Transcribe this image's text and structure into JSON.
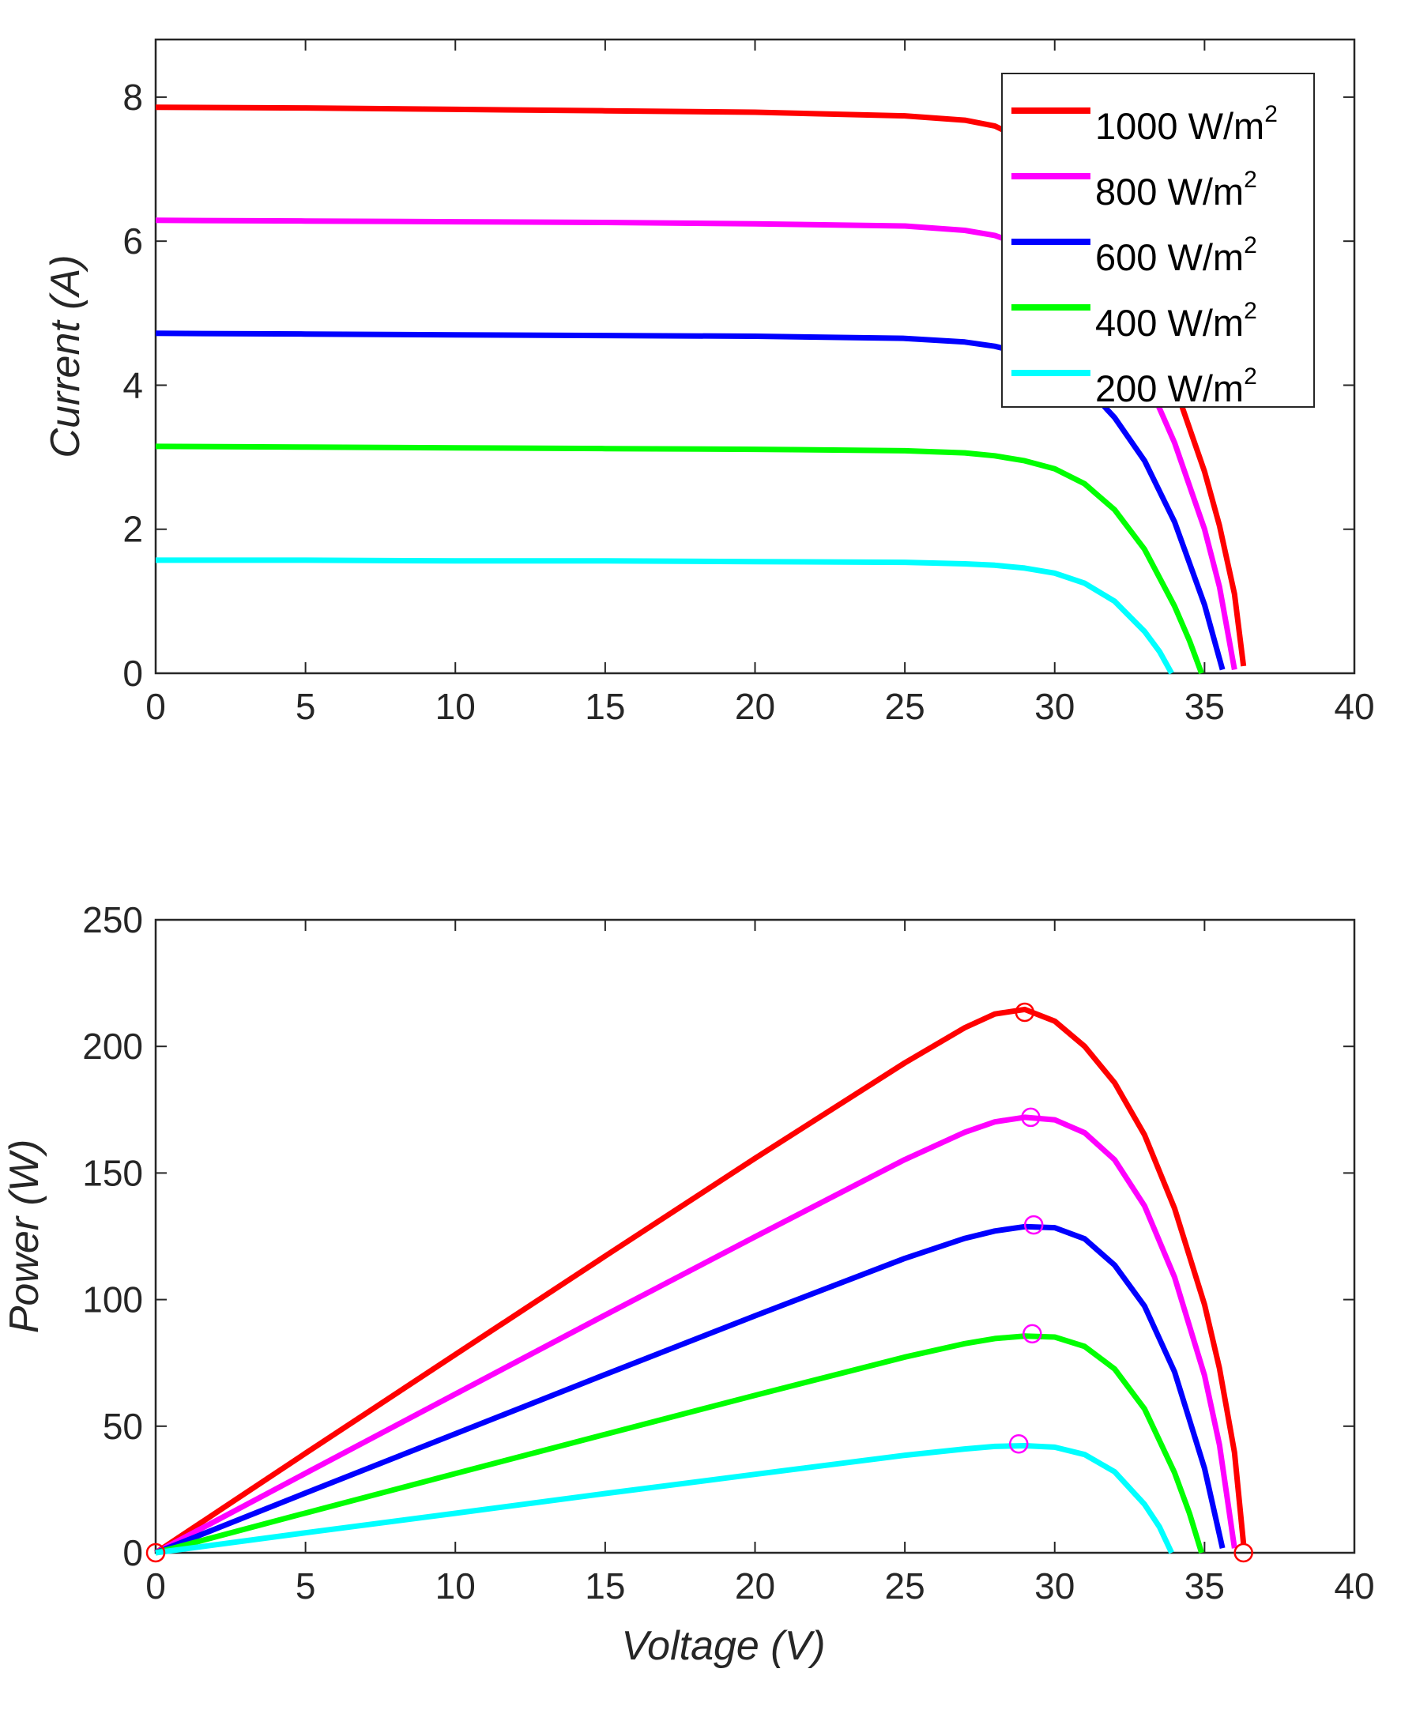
{
  "chart_data": [
    {
      "type": "line",
      "xlabel": "",
      "ylabel": "Current (A)",
      "xlim": [
        0,
        40
      ],
      "ylim": [
        0,
        8.8
      ],
      "xticks": [
        0,
        5,
        10,
        15,
        20,
        25,
        30,
        35,
        40
      ],
      "yticks": [
        0,
        2,
        4,
        6,
        8
      ],
      "grid": false,
      "legend": {
        "position": "top-right",
        "unit": "W/m",
        "superscript": "2"
      },
      "series": [
        {
          "name": "1000",
          "color": "#ff0000",
          "x": [
            0,
            5,
            10,
            15,
            20,
            25,
            27,
            28,
            29,
            30,
            31,
            32,
            33,
            34,
            35,
            35.5,
            36,
            36.3
          ],
          "y": [
            7.86,
            7.85,
            7.83,
            7.81,
            7.79,
            7.74,
            7.68,
            7.6,
            7.4,
            7.0,
            6.45,
            5.8,
            5.0,
            4.0,
            2.8,
            2.05,
            1.1,
            0.1
          ]
        },
        {
          "name": "800",
          "color": "#ff00ff",
          "x": [
            0,
            5,
            10,
            15,
            20,
            25,
            27,
            28,
            29,
            30,
            31,
            32,
            33,
            34,
            35,
            35.5,
            36
          ],
          "y": [
            6.29,
            6.28,
            6.27,
            6.26,
            6.24,
            6.21,
            6.15,
            6.08,
            5.93,
            5.7,
            5.35,
            4.85,
            4.15,
            3.2,
            2.0,
            1.2,
            0.05
          ]
        },
        {
          "name": "600",
          "color": "#0000ff",
          "x": [
            0,
            5,
            10,
            15,
            20,
            25,
            27,
            28,
            29,
            30,
            31,
            32,
            33,
            34,
            35,
            35.6
          ],
          "y": [
            4.72,
            4.71,
            4.7,
            4.69,
            4.68,
            4.65,
            4.6,
            4.54,
            4.44,
            4.28,
            4.0,
            3.55,
            2.95,
            2.1,
            0.95,
            0.05
          ]
        },
        {
          "name": "400",
          "color": "#00ff00",
          "x": [
            0,
            5,
            10,
            15,
            20,
            25,
            27,
            28,
            29,
            30,
            31,
            32,
            33,
            34,
            34.5,
            34.9
          ],
          "y": [
            3.15,
            3.14,
            3.13,
            3.12,
            3.11,
            3.09,
            3.06,
            3.02,
            2.95,
            2.84,
            2.63,
            2.27,
            1.72,
            0.93,
            0.45,
            0.0
          ]
        },
        {
          "name": "200",
          "color": "#00ffff",
          "x": [
            0,
            5,
            10,
            15,
            20,
            25,
            27,
            28,
            29,
            30,
            31,
            32,
            33,
            33.5,
            33.9
          ],
          "y": [
            1.57,
            1.57,
            1.56,
            1.56,
            1.55,
            1.54,
            1.52,
            1.5,
            1.46,
            1.39,
            1.25,
            1.0,
            0.58,
            0.3,
            0.0
          ]
        }
      ]
    },
    {
      "type": "line",
      "xlabel": "Voltage (V)",
      "ylabel": "Power (W)",
      "xlim": [
        0,
        40
      ],
      "ylim": [
        0,
        250
      ],
      "xticks": [
        0,
        5,
        10,
        15,
        20,
        25,
        30,
        35,
        40
      ],
      "yticks": [
        0,
        50,
        100,
        150,
        200,
        250
      ],
      "grid": false,
      "series": [
        {
          "name": "1000",
          "color": "#ff0000",
          "x": [
            0,
            5,
            10,
            15,
            20,
            25,
            27,
            28,
            29,
            30,
            31,
            32,
            33,
            34,
            35,
            35.5,
            36,
            36.3
          ],
          "y": [
            0,
            39.3,
            78.3,
            117.2,
            155.8,
            193.5,
            207.4,
            212.8,
            214.6,
            210.0,
            200.0,
            185.6,
            165.0,
            136.0,
            98.0,
            72.8,
            39.6,
            3.6
          ]
        },
        {
          "name": "800",
          "color": "#ff00ff",
          "x": [
            0,
            5,
            10,
            15,
            20,
            25,
            27,
            28,
            29,
            30,
            31,
            32,
            33,
            34,
            35,
            35.5,
            36
          ],
          "y": [
            0,
            31.4,
            62.7,
            93.9,
            124.8,
            155.3,
            166.1,
            170.2,
            172.0,
            171.0,
            165.9,
            155.2,
            137.0,
            108.8,
            70.0,
            42.6,
            1.8
          ]
        },
        {
          "name": "600",
          "color": "#0000ff",
          "x": [
            0,
            5,
            10,
            15,
            20,
            25,
            27,
            28,
            29,
            30,
            31,
            32,
            33,
            34,
            35,
            35.6
          ],
          "y": [
            0,
            23.6,
            47.0,
            70.4,
            93.6,
            116.3,
            124.2,
            127.1,
            128.8,
            128.4,
            124.0,
            113.6,
            97.4,
            71.4,
            33.3,
            1.8
          ]
        },
        {
          "name": "400",
          "color": "#00ff00",
          "x": [
            0,
            5,
            10,
            15,
            20,
            25,
            27,
            28,
            29,
            30,
            31,
            32,
            33,
            34,
            34.5,
            34.9
          ],
          "y": [
            0,
            15.7,
            31.3,
            46.8,
            62.2,
            77.3,
            82.6,
            84.6,
            85.6,
            85.2,
            81.5,
            72.6,
            56.8,
            31.6,
            15.5,
            0.0
          ]
        },
        {
          "name": "200",
          "color": "#00ffff",
          "x": [
            0,
            5,
            10,
            15,
            20,
            25,
            27,
            28,
            29,
            30,
            31,
            32,
            33,
            33.5,
            33.9
          ],
          "y": [
            0,
            7.9,
            15.6,
            23.4,
            31.0,
            38.5,
            41.0,
            42.0,
            42.3,
            41.7,
            38.8,
            32.0,
            19.1,
            10.1,
            0.0
          ]
        }
      ],
      "markers": [
        {
          "x": 0,
          "y": 0,
          "color": "#ff0000"
        },
        {
          "x": 36.3,
          "y": 0,
          "color": "#ff0000"
        },
        {
          "x": 29.0,
          "y": 213.5,
          "color": "#ff0000"
        },
        {
          "x": 29.2,
          "y": 172.0,
          "color": "#ff00ff"
        },
        {
          "x": 29.3,
          "y": 129.5,
          "color": "#ff00ff"
        },
        {
          "x": 29.25,
          "y": 86.5,
          "color": "#ff00ff"
        },
        {
          "x": 28.8,
          "y": 43.0,
          "color": "#ff00ff"
        }
      ]
    }
  ]
}
